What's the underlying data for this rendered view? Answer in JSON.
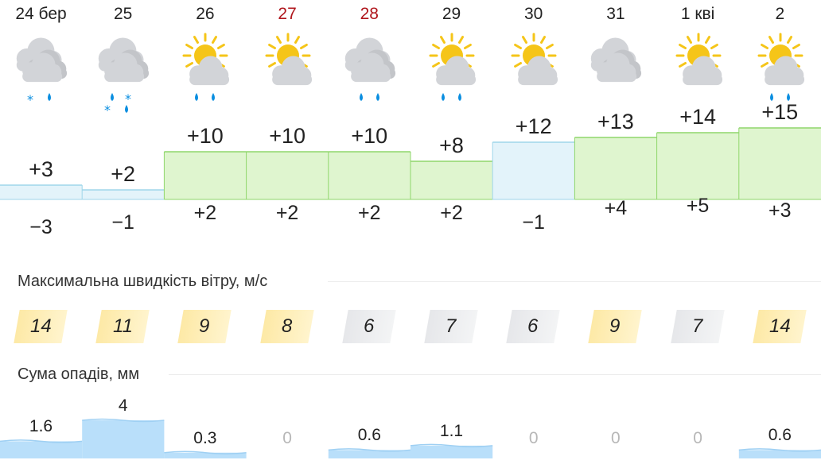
{
  "days": [
    {
      "date": "24 бер",
      "red": false,
      "icon": "cloud-rain-snow-icon",
      "sun": false,
      "drops": 1,
      "flakes": 1,
      "tmax": "+3",
      "tmin": "−3",
      "hi": 3,
      "lo": -3,
      "wind": "14",
      "wind_level": "high",
      "precip": "1.6",
      "precip_mm": 1.6
    },
    {
      "date": "25",
      "red": false,
      "icon": "cloud-rain-snow-icon",
      "sun": false,
      "drops": 2,
      "flakes": 2,
      "tmax": "+2",
      "tmin": "−1",
      "hi": 2,
      "lo": -1,
      "wind": "11",
      "wind_level": "high",
      "precip": "4",
      "precip_mm": 4
    },
    {
      "date": "26",
      "red": false,
      "icon": "sun-cloud-rain-icon",
      "sun": true,
      "drops": 2,
      "flakes": 0,
      "tmax": "+10",
      "tmin": "+2",
      "hi": 10,
      "lo": 2,
      "wind": "9",
      "wind_level": "high",
      "precip": "0.3",
      "precip_mm": 0.3
    },
    {
      "date": "27",
      "red": true,
      "icon": "sun-cloud-icon",
      "sun": true,
      "drops": 0,
      "flakes": 0,
      "tmax": "+10",
      "tmin": "+2",
      "hi": 10,
      "lo": 2,
      "wind": "8",
      "wind_level": "high",
      "precip": "0",
      "precip_mm": 0
    },
    {
      "date": "28",
      "red": true,
      "icon": "cloud-rain-icon",
      "sun": false,
      "drops": 2,
      "flakes": 0,
      "tmax": "+10",
      "tmin": "+2",
      "hi": 10,
      "lo": 2,
      "wind": "6",
      "wind_level": "low",
      "precip": "0.6",
      "precip_mm": 0.6
    },
    {
      "date": "29",
      "red": false,
      "icon": "sun-cloud-rain-icon",
      "sun": true,
      "drops": 2,
      "flakes": 0,
      "tmax": "+8",
      "tmin": "+2",
      "hi": 8,
      "lo": 2,
      "wind": "7",
      "wind_level": "low",
      "precip": "1.1",
      "precip_mm": 1.1
    },
    {
      "date": "30",
      "red": false,
      "icon": "sun-cloud-icon",
      "sun": true,
      "drops": 0,
      "flakes": 0,
      "tmax": "+12",
      "tmin": "−1",
      "hi": 12,
      "lo": -1,
      "wind": "6",
      "wind_level": "low",
      "precip": "0",
      "precip_mm": 0
    },
    {
      "date": "31",
      "red": false,
      "icon": "cloud-icon",
      "sun": false,
      "drops": 0,
      "flakes": 0,
      "tmax": "+13",
      "tmin": "+4",
      "hi": 13,
      "lo": 4,
      "wind": "9",
      "wind_level": "high",
      "precip": "0",
      "precip_mm": 0
    },
    {
      "date": "1 кві",
      "red": false,
      "icon": "sun-cloud-icon",
      "sun": true,
      "drops": 0,
      "flakes": 0,
      "tmax": "+14",
      "tmin": "+5",
      "hi": 14,
      "lo": 5,
      "wind": "7",
      "wind_level": "low",
      "precip": "0",
      "precip_mm": 0
    },
    {
      "date": "2",
      "red": false,
      "icon": "sun-cloud-rain-icon",
      "sun": true,
      "drops": 2,
      "flakes": 0,
      "tmax": "+15",
      "tmin": "+3",
      "hi": 15,
      "lo": 3,
      "wind": "14",
      "wind_level": "high",
      "precip": "0.6",
      "precip_mm": 0.6
    }
  ],
  "wind_section": {
    "title": "Максимальна швидкість вітру, м/с"
  },
  "precip_section": {
    "title": "Сума опадів, мм"
  },
  "colors": {
    "warm": "#8fd66b",
    "warm_fill": "#dff5cf",
    "cold": "#9fd6ea",
    "cold_fill": "#e3f3fa",
    "rain": "#0a8ee0",
    "precip": "#b9dffa",
    "red_date": "#b0161c"
  }
}
